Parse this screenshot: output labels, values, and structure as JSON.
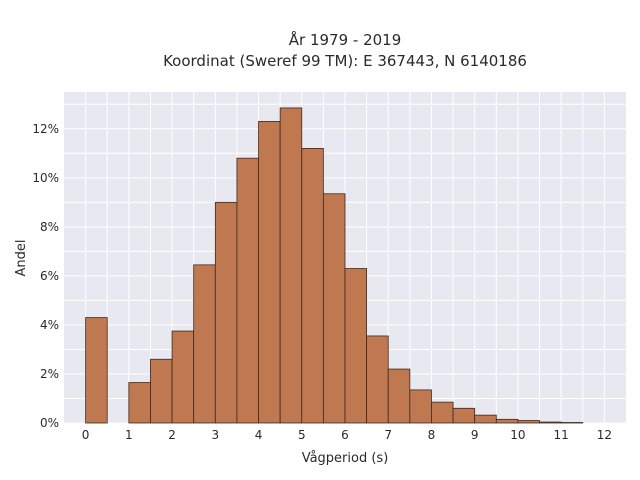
{
  "chart_data": {
    "type": "bar",
    "title_line1": "År 1979 - 2019",
    "title_line2": "Koordinat (Sweref 99 TM): E 367443, N 6140186",
    "xlabel": "Vågperiod (s)",
    "ylabel": "Andel",
    "bin_width": 0.5,
    "bins_start": [
      0,
      1,
      1.5,
      2,
      2.5,
      3,
      3.5,
      4,
      4.5,
      5,
      5.5,
      6,
      6.5,
      7,
      7.5,
      8,
      8.5,
      9,
      9.5,
      10,
      10.5,
      11
    ],
    "values": [
      4.3,
      1.65,
      2.6,
      3.75,
      6.45,
      9.0,
      10.8,
      12.3,
      12.85,
      11.2,
      9.35,
      6.3,
      3.55,
      2.2,
      1.35,
      0.85,
      0.6,
      0.32,
      0.15,
      0.1,
      0.04,
      0.02
    ],
    "xticks": [
      "0",
      "1",
      "2",
      "3",
      "4",
      "5",
      "6",
      "7",
      "8",
      "9",
      "10",
      "11",
      "12"
    ],
    "yticks": [
      "0%",
      "2%",
      "4%",
      "6%",
      "8%",
      "10%",
      "12%"
    ],
    "xlim": [
      -0.5,
      12.5
    ],
    "ylim": [
      0,
      13.5
    ],
    "grid": true,
    "colors": {
      "bar_fill": "#c07850",
      "bar_stroke": "#3b2a20",
      "plot_bg": "#e8e8f0",
      "grid": "#ffffff"
    }
  }
}
